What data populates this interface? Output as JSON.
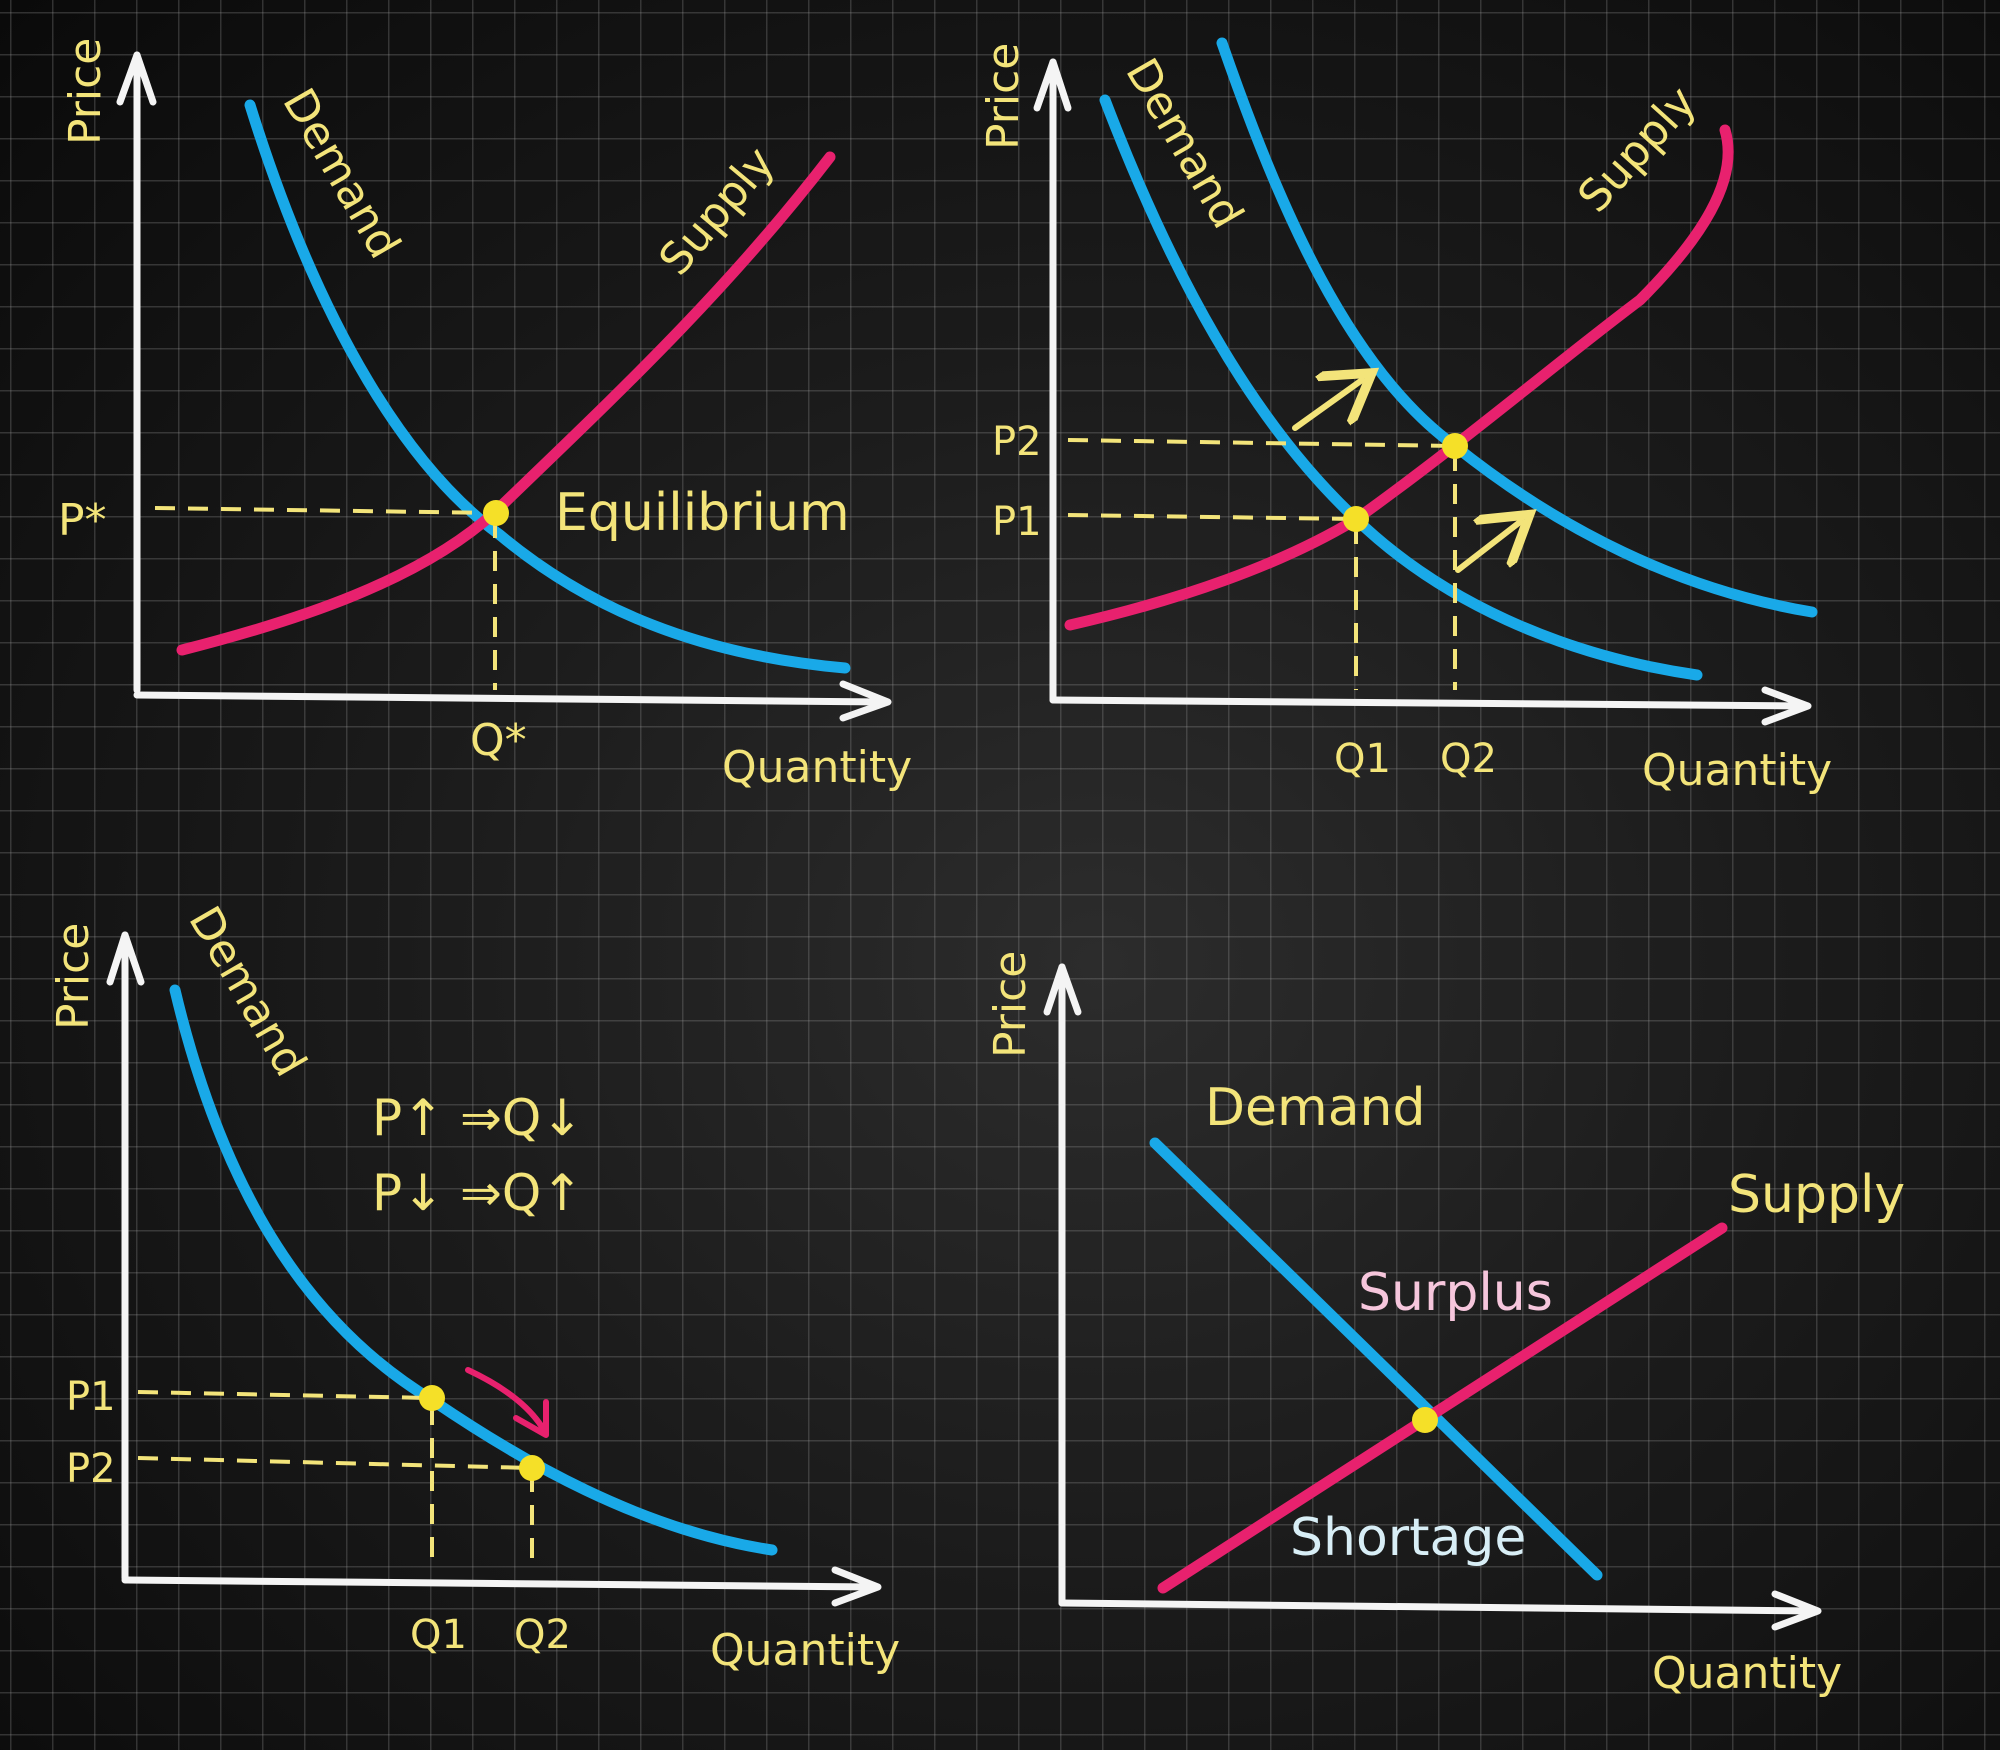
{
  "colors": {
    "background": "#1b1b1b",
    "demand": "#19a9e8",
    "supply": "#e8216e",
    "labels": "#f3e47a",
    "axes": "#f4f4f4"
  },
  "panel1": {
    "price": "Price",
    "quantity": "Quantity",
    "demand": "Demand",
    "supply": "Supply",
    "equilibrium": "Equilibrium",
    "p_star": "P*",
    "q_star": "Q*"
  },
  "panel2": {
    "price": "Price",
    "quantity": "Quantity",
    "demand": "Demand",
    "supply": "Supply",
    "p1": "P1",
    "p2": "P2",
    "q1": "Q1",
    "q2": "Q2"
  },
  "panel3": {
    "price": "Price",
    "quantity": "Quantity",
    "demand": "Demand",
    "p1": "P1",
    "p2": "P2",
    "q1": "Q1",
    "q2": "Q2",
    "rule_up": "P↑ ⇒Q↓",
    "rule_down": "P↓ ⇒Q↑"
  },
  "panel4": {
    "price": "Price",
    "quantity": "Quantity",
    "demand": "Demand",
    "supply": "Supply",
    "surplus": "Surplus",
    "shortage": "Shortage"
  }
}
